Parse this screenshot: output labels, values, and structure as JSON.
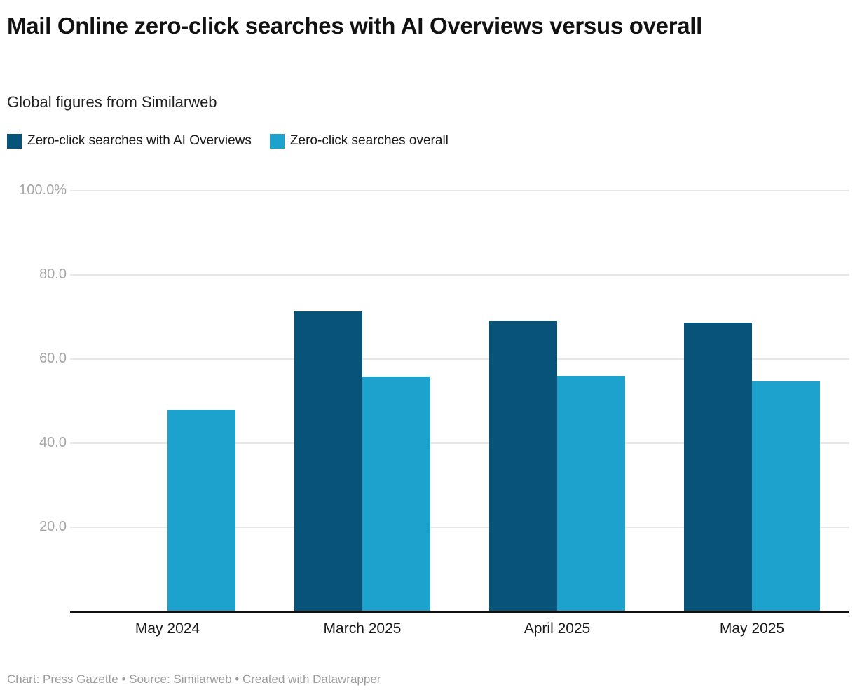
{
  "header": {
    "title": "Mail Online zero-click searches with AI Overviews versus overall",
    "subtitle": "Global figures from Similarweb"
  },
  "footer": {
    "text": "Chart: Press Gazette • Source: Similarweb • Created with Datawrapper"
  },
  "colors": {
    "series_ai_overviews": "#075379",
    "series_overall": "#1da2ce",
    "gridline": "#e8e8e8",
    "axis_line": "#111111",
    "tick_label": "#a6a6a6"
  },
  "chart_data": {
    "type": "bar",
    "title": "Mail Online zero-click searches with AI Overviews versus overall",
    "subtitle": "Global figures from Similarweb",
    "categories": [
      "May 2024",
      "March 2025",
      "April 2025",
      "May 2025"
    ],
    "series": [
      {
        "name": "Zero-click searches with AI Overviews",
        "color": "#075379",
        "values": [
          null,
          71.3,
          69.0,
          68.6
        ]
      },
      {
        "name": "Zero-click searches overall",
        "color": "#1da2ce",
        "values": [
          48.0,
          55.8,
          56.0,
          54.7
        ]
      }
    ],
    "ylabel": "",
    "xlabel": "",
    "ylim": [
      0,
      100
    ],
    "yticks": [
      {
        "value": 100,
        "label": "100.0%"
      },
      {
        "value": 80,
        "label": "80.0"
      },
      {
        "value": 60,
        "label": "60.0"
      },
      {
        "value": 40,
        "label": "40.0"
      },
      {
        "value": 20,
        "label": "20.0"
      }
    ],
    "grid": true,
    "legend_position": "top-left",
    "footer": "Chart: Press Gazette • Source: Similarweb • Created with Datawrapper"
  }
}
